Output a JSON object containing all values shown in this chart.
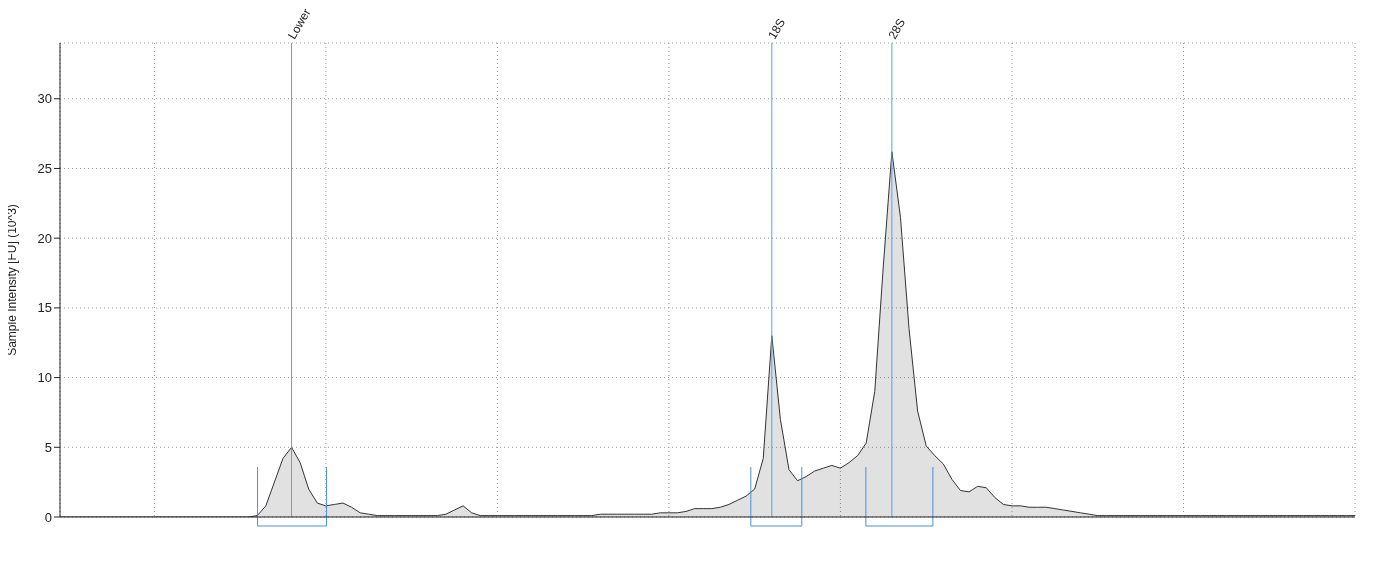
{
  "chart_data": {
    "type": "area",
    "ylabel": "Sample Intensity [FU] (10^3)",
    "categories": [
      null,
      null,
      null,
      null,
      null,
      null,
      null,
      null,
      null,
      null,
      null,
      null,
      null,
      null,
      null,
      null,
      null,
      null,
      null,
      null,
      null,
      null,
      null,
      null,
      null,
      null,
      null,
      null,
      null,
      null,
      null,
      null,
      null,
      null,
      null,
      null,
      null,
      null,
      null,
      null,
      null,
      null,
      null,
      null,
      null,
      null,
      null,
      null,
      null,
      null,
      null,
      null,
      null,
      null,
      null,
      null,
      null,
      null,
      null,
      null,
      null,
      null,
      null,
      null,
      null,
      null,
      null,
      null,
      null,
      null,
      null,
      null,
      null,
      null,
      null,
      null,
      null,
      null,
      null,
      null,
      null,
      null,
      null,
      null,
      null,
      null,
      null,
      null,
      null,
      null,
      null,
      null,
      null,
      null,
      null,
      null,
      null,
      null,
      null,
      null,
      null,
      null,
      null,
      null,
      null,
      null,
      null,
      null,
      null,
      null,
      null,
      null,
      null,
      null,
      null,
      null,
      null,
      null,
      null,
      null,
      null,
      null,
      null,
      null,
      null,
      null,
      null,
      null,
      null,
      null,
      null,
      null,
      null,
      null,
      null,
      null,
      null,
      null,
      null,
      null,
      null,
      null,
      null,
      null,
      null,
      null,
      null,
      null,
      null,
      null,
      null,
      null
    ],
    "series": [
      {
        "color": "#333333",
        "values": [
          0,
          0,
          0,
          0,
          0,
          0,
          0,
          0,
          0,
          0,
          0,
          0,
          0,
          0,
          0,
          0,
          0,
          0,
          0,
          0,
          0,
          0,
          0,
          0.1,
          0.8,
          2.5,
          4.2,
          5.0,
          3.9,
          2.0,
          1.0,
          0.8,
          0.9,
          1.0,
          0.7,
          0.3,
          0.2,
          0.1,
          0.1,
          0.1,
          0.1,
          0.1,
          0.1,
          0.1,
          0.1,
          0.2,
          0.5,
          0.8,
          0.3,
          0.1,
          0.1,
          0.1,
          0.1,
          0.1,
          0.1,
          0.1,
          0.1,
          0.1,
          0.1,
          0.1,
          0.1,
          0.1,
          0.1,
          0.2,
          0.2,
          0.2,
          0.2,
          0.2,
          0.2,
          0.2,
          0.3,
          0.3,
          0.3,
          0.4,
          0.6,
          0.6,
          0.6,
          0.7,
          0.9,
          1.2,
          1.5,
          2.0,
          4.2,
          13,
          7,
          3.4,
          2.6,
          2.9,
          3.3,
          3.5,
          3.7,
          3.5,
          3.9,
          4.4,
          5.3,
          9,
          18,
          26.2,
          21.5,
          13.5,
          7.6,
          5.1,
          4.4,
          3.8,
          2.7,
          1.9,
          1.8,
          2.2,
          2.1,
          1.4,
          0.9,
          0.8,
          0.8,
          0.7,
          0.7,
          0.7,
          0.6,
          0.5,
          0.4,
          0.3,
          0.2,
          0.1,
          0.1,
          0.1,
          0.1,
          0.1,
          0.1,
          0.1,
          0.1,
          0.1,
          0.1,
          0.1,
          0.1,
          0.1,
          0.1,
          0.1,
          0.1,
          0.1,
          0.1,
          0.1,
          0.1,
          0.1,
          0.1,
          0.1,
          0.1,
          0.1,
          0.1,
          0.1,
          0.1,
          0.1,
          0.1,
          0.1
        ]
      }
    ],
    "ylim": [
      0,
      34
    ],
    "yticks": [
      0,
      5,
      10,
      15,
      20,
      25,
      30
    ],
    "grid": true,
    "annotations": [
      "Lower",
      "18S",
      "28S"
    ]
  }
}
